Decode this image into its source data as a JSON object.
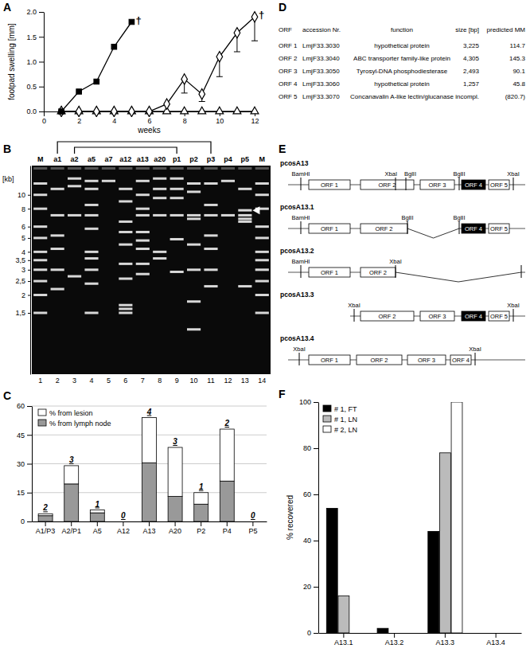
{
  "chart_data": [
    {
      "type": "line",
      "title": "A",
      "xlabel": "weeks",
      "ylabel": "footpad swelling [mm]",
      "x": [
        1,
        2,
        3,
        4,
        5,
        6,
        7,
        8,
        9,
        10,
        11,
        12
      ],
      "series": [
        {
          "values": [
            0,
            0.4,
            0.6,
            1.3,
            1.8,
            null,
            null,
            null,
            null,
            null,
            null,
            null
          ],
          "color": "#000000",
          "marker": "square",
          "line_style": "solid"
        },
        {
          "values": [
            0,
            0,
            0,
            0,
            0,
            0,
            0.15,
            0.65,
            0.35,
            1.1,
            1.58,
            1.9
          ],
          "errors": [
            null,
            null,
            null,
            null,
            null,
            null,
            null,
            0.28,
            0.15,
            0.4,
            0.38,
            0.48
          ],
          "color": "#000000",
          "marker": "diamond-open",
          "line_style": "solid"
        },
        {
          "values": [
            0,
            0,
            0,
            0,
            0,
            0,
            0,
            0,
            0,
            0,
            0,
            0
          ],
          "color": "#000000",
          "marker": "triangle-open",
          "line_style": "solid"
        }
      ],
      "xlim": [
        0,
        12
      ],
      "xticks": [
        0,
        2,
        4,
        6,
        8,
        10,
        12
      ],
      "ylim": [
        0,
        2
      ],
      "yticks": [
        {
          "value": 0,
          "label": "0.0"
        },
        {
          "value": 0.5,
          "label": "0.5"
        },
        {
          "value": 1,
          "label": "1.0"
        },
        {
          "value": 1.5,
          "label": "1.5"
        },
        {
          "value": 2,
          "label": "2.0"
        }
      ],
      "annotations": [
        {
          "text": "†",
          "x": 5,
          "y": 1.8
        },
        {
          "text": "†",
          "x": 12,
          "y": 1.9
        }
      ]
    },
    {
      "type": "gel",
      "title": "B",
      "ylabel": "[kb]",
      "categories": [
        "M",
        "a1",
        "a2",
        "a5",
        "a7",
        "a12",
        "a13",
        "a20",
        "p1",
        "p2",
        "p3",
        "p4",
        "p5",
        "M"
      ],
      "lane_numbers": [
        1,
        2,
        3,
        4,
        5,
        6,
        7,
        8,
        9,
        10,
        11,
        12,
        13,
        14
      ],
      "log": "y",
      "ylim": [
        0.56,
        16
      ],
      "yticks": [
        10,
        8,
        6,
        5,
        4,
        {
          "value": 3.5,
          "label": "3,5"
        },
        3,
        {
          "value": 2.5,
          "label": "2,5"
        },
        2,
        {
          "value": 1.5,
          "label": "1,5"
        }
      ],
      "bands": [
        [
          12,
          10,
          8,
          6,
          5,
          4,
          3.5,
          3,
          2.5,
          2,
          1.5
        ],
        [
          11,
          7.2,
          5.2,
          4.2,
          3.0,
          2.2
        ],
        [
          13,
          11.5,
          7.2,
          2.7
        ],
        [
          12.5,
          11,
          8.5,
          7.2,
          5.8,
          4.0,
          3.6,
          3.0,
          2.4,
          1.5
        ],
        [
          12.5
        ],
        [
          11,
          9,
          6.5,
          5.5,
          4.5,
          3.3,
          2.6,
          1.7,
          1.6,
          1.5
        ],
        [
          12.5,
          10,
          8,
          7.2,
          5.5,
          4.8,
          4.2,
          3.3,
          2.8
        ],
        [
          13,
          11,
          9.5,
          7.2,
          4.0,
          3.6
        ],
        [
          13,
          11,
          9.5,
          7.2,
          4.9,
          2.9
        ],
        [
          12,
          10.5,
          7.2,
          6.8,
          4.5,
          3.0,
          1.8,
          1.15
        ],
        [
          12,
          8.5,
          7.2,
          5.2,
          4.2,
          3.0,
          2.3
        ],
        [
          12.5,
          7.2
        ],
        [
          11,
          7.8,
          7.2,
          6.8,
          6.5,
          2.3
        ],
        [
          12,
          10,
          8,
          6,
          5,
          4,
          3.5,
          3,
          2.5,
          2,
          1.5
        ]
      ],
      "brackets": [
        [
          "a1",
          "p3"
        ],
        [
          "a2",
          "p1"
        ]
      ],
      "arrow": {
        "lane": "p5",
        "kb": 7.8
      }
    },
    {
      "type": "bar",
      "title": "C",
      "stacked": true,
      "categories": [
        "A1/P3",
        "A2/P1",
        "A5",
        "A12",
        "A13",
        "A20",
        "P2",
        "P4",
        "P5"
      ],
      "series": [
        {
          "name": "% from lymph node",
          "color": "#999999",
          "values": [
            3,
            19.5,
            4.5,
            0,
            30.5,
            13,
            9,
            21,
            0
          ]
        },
        {
          "name": "% from lesion",
          "color": "#ffffff",
          "values": [
            1,
            9.5,
            1.5,
            0,
            23.5,
            25.5,
            6,
            27,
            0
          ]
        }
      ],
      "ylim": [
        0,
        60
      ],
      "yticks": [
        0,
        15,
        30,
        45,
        60
      ],
      "grid": true,
      "legend": "top-left",
      "counts": [
        2,
        3,
        1,
        0,
        4,
        3,
        1,
        2,
        0
      ]
    },
    {
      "type": "bar",
      "title": "F",
      "ylabel": "% recovered",
      "categories": [
        "A13.1",
        "A13.2",
        "A13.3",
        "A13.4"
      ],
      "series": [
        {
          "name": "# 1, FT",
          "color": "#000000",
          "values": [
            54,
            2,
            44,
            0
          ]
        },
        {
          "name": "# 1, LN",
          "color": "#bbbbbb",
          "values": [
            16,
            0,
            78,
            0
          ]
        },
        {
          "name": "# 2, LN",
          "color": "#ffffff",
          "values": [
            0,
            0,
            100,
            0
          ]
        }
      ],
      "ylim": [
        0,
        100
      ],
      "yticks": [
        0,
        20,
        40,
        60,
        80,
        100
      ],
      "legend": "top-left"
    }
  ],
  "table": {
    "title": "D",
    "columns": [
      "ORF",
      "accession Nr.",
      "function",
      "size [bp]",
      "predicted MM"
    ],
    "rows": [
      [
        "ORF 1",
        "LmjF33.3030",
        "hypothetical protein",
        "3,225",
        "114.7"
      ],
      [
        "ORF 2",
        "LmjF33.3040",
        "ABC transporter family-like protein",
        "4,305",
        "145.3"
      ],
      [
        "ORF 3",
        "LmjF33.3050",
        "Tyrosyl-DNA phosphodiesterase",
        "2,493",
        "90.1"
      ],
      [
        "ORF 4",
        "LmjF33.3060",
        "hypothetical protein",
        "1,257",
        "45.8"
      ],
      [
        "ORF 5",
        "LmjF33.3070",
        "Concanavalin A-like lectin/glucanase",
        "incompl.",
        "(820.7)"
      ]
    ]
  },
  "diagram": {
    "title": "E",
    "constructs": [
      {
        "name": "pcosA13",
        "sites": [
          "BamHI",
          "XbaI",
          "BglII",
          "BglII",
          "XbaI"
        ],
        "orfs": [
          "ORF 1",
          "ORF 2",
          "ORF 3",
          "ORF 4",
          "ORF 5"
        ],
        "highlight": [
          "ORF 4"
        ]
      },
      {
        "name": "pcosA13.1",
        "sites": [
          "BamHI",
          "BglII",
          "BglII"
        ],
        "orfs": [
          "ORF 1",
          "ORF 2",
          "ORF 4",
          "ORF 5"
        ],
        "highlight": [
          "ORF 4"
        ]
      },
      {
        "name": "pcosA13.2",
        "sites": [
          "BamHI",
          "XbaI"
        ],
        "orfs": [
          "ORF 1",
          "ORF 2"
        ]
      },
      {
        "name": "pcosA13.3",
        "sites": [
          "XbaI",
          "XbaI"
        ],
        "orfs": [
          "ORF 2",
          "ORF 3",
          "ORF 4",
          "ORF 5"
        ],
        "highlight": [
          "ORF 4"
        ]
      },
      {
        "name": "pcosA13.4",
        "sites": [
          "XbaI",
          "XbaI"
        ],
        "orfs": [
          "ORF 1",
          "ORF 2",
          "ORF 3",
          "ORF 4"
        ]
      }
    ]
  }
}
